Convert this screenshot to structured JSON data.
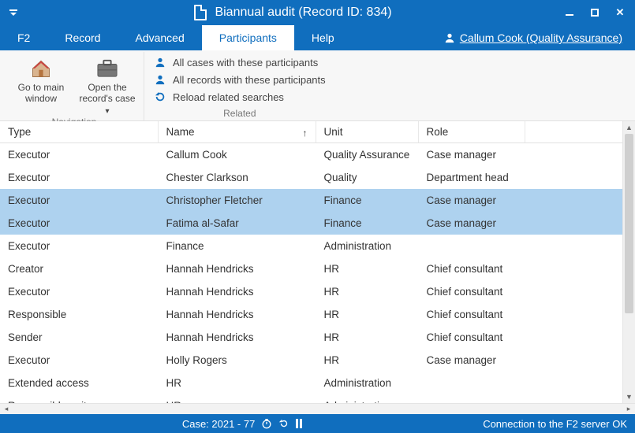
{
  "window": {
    "title": "Biannual audit (Record ID: 834)"
  },
  "tabs": {
    "f2": "F2",
    "record": "Record",
    "advanced": "Advanced",
    "participants": "Participants",
    "help": "Help"
  },
  "user": {
    "label": "Callum Cook (Quality Assurance)"
  },
  "ribbon": {
    "nav": {
      "main_window": "Go to main window",
      "open_case": "Open the record's case",
      "group_label": "Navigation"
    },
    "related": {
      "all_cases": "All cases with these participants",
      "all_records": "All records with these participants",
      "reload": "Reload related searches",
      "group_label": "Related"
    }
  },
  "table": {
    "columns": {
      "type": "Type",
      "name": "Name",
      "unit": "Unit",
      "role": "Role"
    },
    "rows": [
      {
        "type": "Executor",
        "name": "Callum Cook",
        "unit": "Quality Assurance",
        "role": "Case manager",
        "selected": false
      },
      {
        "type": "Executor",
        "name": "Chester Clarkson",
        "unit": "Quality",
        "role": "Department head",
        "selected": false
      },
      {
        "type": "Executor",
        "name": "Christopher Fletcher",
        "unit": "Finance",
        "role": "Case manager",
        "selected": true
      },
      {
        "type": "Executor",
        "name": "Fatima al-Safar",
        "unit": "Finance",
        "role": "Case manager",
        "selected": true
      },
      {
        "type": "Executor",
        "name": "Finance",
        "unit": "Administration",
        "role": "",
        "selected": false
      },
      {
        "type": "Creator",
        "name": "Hannah Hendricks",
        "unit": "HR",
        "role": "Chief consultant",
        "selected": false
      },
      {
        "type": "Executor",
        "name": "Hannah Hendricks",
        "unit": "HR",
        "role": "Chief consultant",
        "selected": false
      },
      {
        "type": "Responsible",
        "name": "Hannah Hendricks",
        "unit": "HR",
        "role": "Chief consultant",
        "selected": false
      },
      {
        "type": "Sender",
        "name": "Hannah Hendricks",
        "unit": "HR",
        "role": "Chief consultant",
        "selected": false
      },
      {
        "type": "Executor",
        "name": "Holly Rogers",
        "unit": "HR",
        "role": "Case manager",
        "selected": false
      },
      {
        "type": "Extended access",
        "name": "HR",
        "unit": "Administration",
        "role": "",
        "selected": false
      },
      {
        "type": "Responsible unit",
        "name": "HR",
        "unit": "Administration",
        "role": "",
        "selected": false
      }
    ]
  },
  "statusbar": {
    "case_label": "Case: 2021 - 77",
    "connection": "Connection to the F2 server OK"
  },
  "colors": {
    "brand": "#106ebe",
    "selection": "#aed2ef"
  }
}
